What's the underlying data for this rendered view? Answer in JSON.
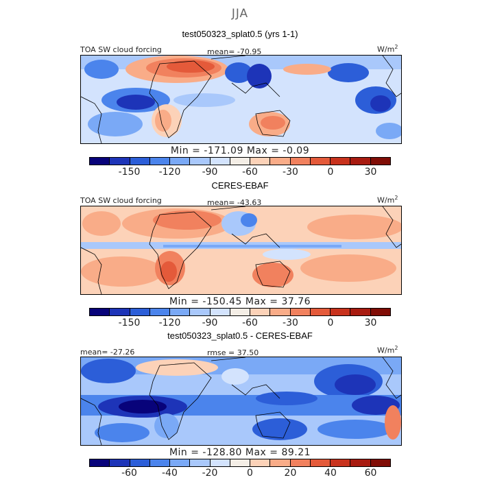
{
  "season": "JJA",
  "colors": [
    "#08037a",
    "#1d34b8",
    "#2c5ed8",
    "#4b84ec",
    "#7aa9f6",
    "#a9c8fb",
    "#d3e3fd",
    "#f4eee6",
    "#fcd2b8",
    "#f9ac88",
    "#f1815e",
    "#e45a3a",
    "#c8321d",
    "#a81b10",
    "#800d06"
  ],
  "panels": [
    {
      "title": "test050323_splat0.5 (yrs 1-1)",
      "left_label": "TOA SW cloud forcing",
      "center_label": "mean= -70.95",
      "units": "W/m",
      "units_sup": "2",
      "minmax": "Min = -171.09 Max =  -0.09",
      "ticks": [
        "-150",
        "-120",
        "-90",
        "-60",
        "-30",
        "0",
        "30"
      ]
    },
    {
      "title": "CERES-EBAF",
      "left_label": "TOA SW cloud forcing",
      "center_label": "mean= -43.63",
      "units": "W/m",
      "units_sup": "2",
      "minmax": "Min = -150.45 Max =  37.76",
      "ticks": [
        "-150",
        "-120",
        "-90",
        "-60",
        "-30",
        "0",
        "30"
      ]
    },
    {
      "title": "test050323_splat0.5 - CERES-EBAF",
      "left_label": "mean= -27.26",
      "center_label": "rmse =  37.50",
      "units": "W/m",
      "units_sup": "2",
      "minmax": "Min = -128.80 Max =  89.21",
      "ticks": [
        "-60",
        "-40",
        "-20",
        "0",
        "20",
        "40",
        "60"
      ]
    }
  ]
}
